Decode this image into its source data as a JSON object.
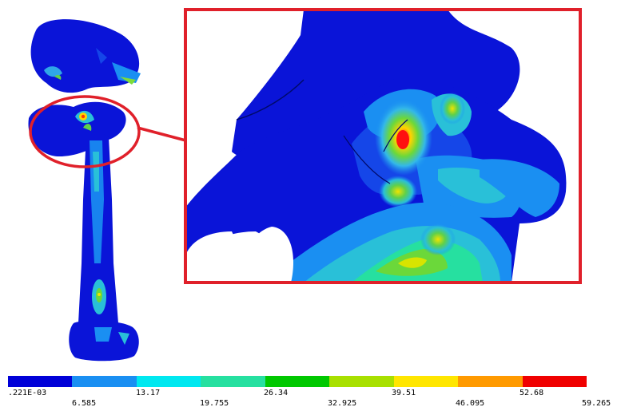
{
  "legend": {
    "colors": [
      "#0000d8",
      "#1a8ff2",
      "#00e8f0",
      "#26e0a0",
      "#00c800",
      "#a8e000",
      "#ffe600",
      "#ff9a00",
      "#f00000"
    ],
    "labels_top": [
      ".221E-03",
      "13.17",
      "26.34",
      "39.51",
      "52.68"
    ],
    "labels_bottom": [
      "6.585",
      "19.755",
      "32.925",
      "46.095",
      "59.265"
    ]
  },
  "highlight": {
    "callout_color": "#e0202a"
  }
}
